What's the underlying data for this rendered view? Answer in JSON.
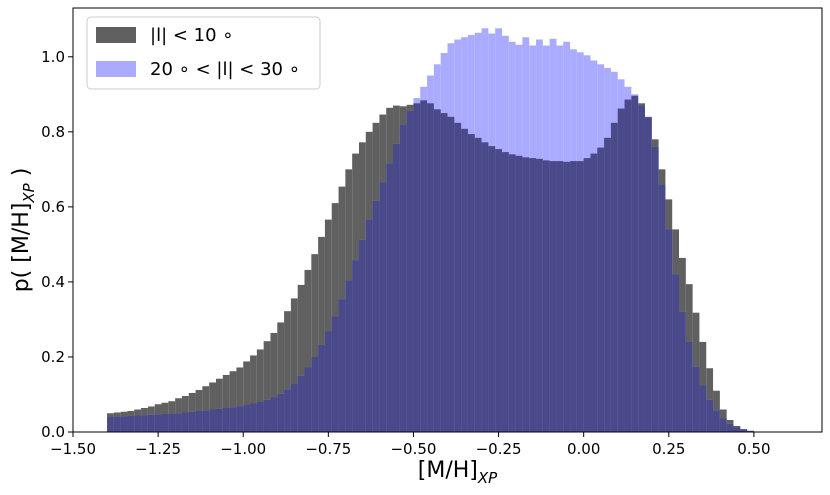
{
  "chart_data": {
    "type": "histogram",
    "xlabel": "[M/H]",
    "xlabel_sub": "XP",
    "ylabel": "p( [M/H]",
    "ylabel_sub": "XP",
    "ylabel_close": " )",
    "xlim": [
      -1.5,
      0.7
    ],
    "ylim": [
      0.0,
      1.13
    ],
    "xticks": [
      -1.5,
      -1.25,
      -1.0,
      -0.75,
      -0.5,
      -0.25,
      0.0,
      0.25,
      0.5
    ],
    "xtick_labels": [
      "−1.50",
      "−1.25",
      "−1.00",
      "−0.75",
      "−0.50",
      "−0.25",
      "0.00",
      "0.25",
      "0.50"
    ],
    "yticks": [
      0.0,
      0.2,
      0.4,
      0.6,
      0.8,
      1.0
    ],
    "ytick_labels": [
      "0.0",
      "0.2",
      "0.4",
      "0.6",
      "0.8",
      "1.0"
    ],
    "bin_start": -1.4,
    "bin_width": 0.02,
    "legend": {
      "placement": "top-left"
    },
    "series": [
      {
        "name": "|l| < 10°",
        "legend_label": "|l| < 10 ∘",
        "color": "#606060",
        "values": [
          0.05,
          0.052,
          0.054,
          0.056,
          0.06,
          0.064,
          0.068,
          0.074,
          0.078,
          0.082,
          0.09,
          0.096,
          0.104,
          0.112,
          0.122,
          0.132,
          0.142,
          0.152,
          0.162,
          0.172,
          0.188,
          0.204,
          0.22,
          0.242,
          0.264,
          0.292,
          0.322,
          0.356,
          0.392,
          0.432,
          0.474,
          0.52,
          0.566,
          0.61,
          0.654,
          0.7,
          0.742,
          0.772,
          0.8,
          0.824,
          0.846,
          0.864,
          0.87,
          0.868,
          0.872,
          0.876,
          0.884,
          0.876,
          0.86,
          0.85,
          0.84,
          0.824,
          0.808,
          0.794,
          0.784,
          0.772,
          0.762,
          0.754,
          0.746,
          0.74,
          0.736,
          0.732,
          0.73,
          0.728,
          0.724,
          0.722,
          0.722,
          0.72,
          0.722,
          0.722,
          0.73,
          0.742,
          0.758,
          0.784,
          0.824,
          0.862,
          0.886,
          0.896,
          0.876,
          0.84,
          0.78,
          0.7,
          0.62,
          0.54,
          0.464,
          0.394,
          0.318,
          0.24,
          0.17,
          0.11,
          0.06,
          0.032,
          0.016,
          0.008,
          0.003,
          0.001,
          0.0,
          0.0,
          0.0,
          0.0
        ]
      },
      {
        "name": "20° < |l| < 30°",
        "legend_label": "20 ∘ < |l| < 30 ∘",
        "color": "#aaaaff",
        "values": [
          0.04,
          0.041,
          0.042,
          0.043,
          0.044,
          0.045,
          0.046,
          0.047,
          0.048,
          0.049,
          0.05,
          0.052,
          0.054,
          0.056,
          0.058,
          0.06,
          0.062,
          0.064,
          0.066,
          0.069,
          0.072,
          0.076,
          0.08,
          0.086,
          0.093,
          0.102,
          0.114,
          0.13,
          0.15,
          0.172,
          0.2,
          0.232,
          0.268,
          0.308,
          0.354,
          0.404,
          0.458,
          0.512,
          0.566,
          0.616,
          0.666,
          0.716,
          0.768,
          0.82,
          0.856,
          0.89,
          0.92,
          0.95,
          0.98,
          1.01,
          1.036,
          1.046,
          1.052,
          1.058,
          1.064,
          1.076,
          1.062,
          1.076,
          1.056,
          1.04,
          1.032,
          1.052,
          1.03,
          1.046,
          1.03,
          1.048,
          1.03,
          1.04,
          1.02,
          1.012,
          1.004,
          0.99,
          0.98,
          0.97,
          0.96,
          0.94,
          0.92,
          0.9,
          0.87,
          0.838,
          0.76,
          0.66,
          0.54,
          0.42,
          0.32,
          0.24,
          0.174,
          0.124,
          0.086,
          0.058,
          0.036,
          0.022,
          0.012,
          0.006,
          0.003,
          0.001,
          0.0,
          0.0,
          0.0,
          0.0
        ]
      }
    ]
  }
}
